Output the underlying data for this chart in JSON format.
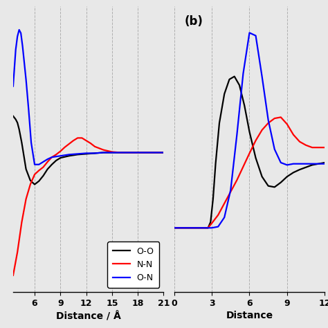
{
  "panel_a": {
    "xlim": [
      3.5,
      21
    ],
    "xticks": [
      6,
      9,
      12,
      15,
      18,
      21
    ],
    "xlabel": "Distance / Å",
    "oo": {
      "x": [
        3.5,
        3.8,
        4.0,
        4.2,
        4.5,
        5.0,
        5.5,
        6.0,
        6.5,
        7.0,
        7.5,
        8.0,
        8.5,
        9.0,
        10.0,
        11.0,
        12.0,
        13.0,
        14.0,
        15.0,
        16.0,
        17.0,
        18.0,
        19.0,
        20.0,
        21.0
      ],
      "y": [
        1.55,
        1.5,
        1.45,
        1.35,
        1.15,
        0.75,
        0.58,
        0.52,
        0.57,
        0.65,
        0.75,
        0.82,
        0.88,
        0.92,
        0.95,
        0.97,
        0.98,
        0.99,
        1.0,
        1.0,
        1.0,
        1.0,
        1.0,
        1.0,
        1.0,
        1.0
      ]
    },
    "nn": {
      "x": [
        3.5,
        4.0,
        4.5,
        5.0,
        5.5,
        6.0,
        6.5,
        7.0,
        7.5,
        8.0,
        8.5,
        9.0,
        9.5,
        10.0,
        10.5,
        11.0,
        11.5,
        12.0,
        12.5,
        13.0,
        14.0,
        15.0,
        16.0,
        17.0,
        18.0,
        19.0,
        20.0,
        21.0
      ],
      "y": [
        -0.85,
        -0.5,
        -0.05,
        0.3,
        0.52,
        0.67,
        0.73,
        0.78,
        0.86,
        0.93,
        0.97,
        1.02,
        1.08,
        1.13,
        1.18,
        1.22,
        1.22,
        1.18,
        1.14,
        1.09,
        1.04,
        1.01,
        1.0,
        1.0,
        1.0,
        1.0,
        1.0,
        1.0
      ]
    },
    "on": {
      "x": [
        3.5,
        3.8,
        4.0,
        4.2,
        4.4,
        4.6,
        5.0,
        5.3,
        5.6,
        6.0,
        6.5,
        7.0,
        7.5,
        8.0,
        9.0,
        10.0,
        11.0,
        12.0,
        13.0,
        14.0,
        15.0,
        16.0,
        17.0,
        18.0,
        19.0,
        20.0,
        21.0
      ],
      "y": [
        2.0,
        2.55,
        2.75,
        2.85,
        2.8,
        2.6,
        2.1,
        1.65,
        1.15,
        0.82,
        0.82,
        0.86,
        0.9,
        0.93,
        0.95,
        0.97,
        0.98,
        0.99,
        0.99,
        1.0,
        1.0,
        1.0,
        1.0,
        1.0,
        1.0,
        1.0,
        1.0
      ]
    },
    "ylim": [
      -1.1,
      3.2
    ],
    "legend_entries": [
      "O-O",
      "N-N",
      "O-N"
    ],
    "legend_colors": [
      "black",
      "red",
      "blue"
    ]
  },
  "panel_b": {
    "xlim": [
      0,
      12
    ],
    "xticks": [
      0,
      3,
      6,
      9,
      12
    ],
    "xlabel": "Distance",
    "label": "(b)",
    "oo": {
      "x": [
        0.0,
        2.7,
        2.9,
        3.1,
        3.3,
        3.6,
        4.0,
        4.4,
        4.8,
        5.2,
        5.6,
        6.0,
        6.5,
        7.0,
        7.5,
        8.0,
        8.5,
        9.0,
        9.5,
        10.0,
        11.0,
        12.0
      ],
      "y": [
        0.0,
        0.0,
        0.1,
        0.5,
        1.1,
        1.8,
        2.3,
        2.55,
        2.6,
        2.45,
        2.1,
        1.65,
        1.2,
        0.88,
        0.72,
        0.7,
        0.78,
        0.88,
        0.95,
        1.0,
        1.08,
        1.12
      ]
    },
    "nn": {
      "x": [
        0.0,
        2.7,
        3.0,
        3.5,
        4.0,
        4.5,
        5.0,
        5.5,
        6.0,
        6.5,
        7.0,
        7.5,
        8.0,
        8.5,
        9.0,
        9.5,
        10.0,
        10.5,
        11.0,
        12.0
      ],
      "y": [
        0.0,
        0.0,
        0.08,
        0.22,
        0.42,
        0.62,
        0.82,
        1.05,
        1.28,
        1.5,
        1.68,
        1.8,
        1.88,
        1.9,
        1.78,
        1.6,
        1.48,
        1.42,
        1.38,
        1.38
      ]
    },
    "on": {
      "x": [
        0.0,
        2.7,
        3.0,
        3.5,
        4.0,
        4.5,
        5.0,
        5.5,
        6.0,
        6.5,
        7.0,
        7.5,
        8.0,
        8.5,
        9.0,
        9.5,
        10.0,
        11.0,
        12.0
      ],
      "y": [
        0.0,
        0.0,
        0.0,
        0.02,
        0.18,
        0.65,
        1.6,
        2.65,
        3.35,
        3.3,
        2.6,
        1.85,
        1.35,
        1.12,
        1.08,
        1.1,
        1.1,
        1.1,
        1.1
      ]
    },
    "ylim": [
      -1.1,
      3.8
    ]
  },
  "background_color": "#e8e8e8",
  "grid_color": "#aaaaaa",
  "line_width": 1.6
}
